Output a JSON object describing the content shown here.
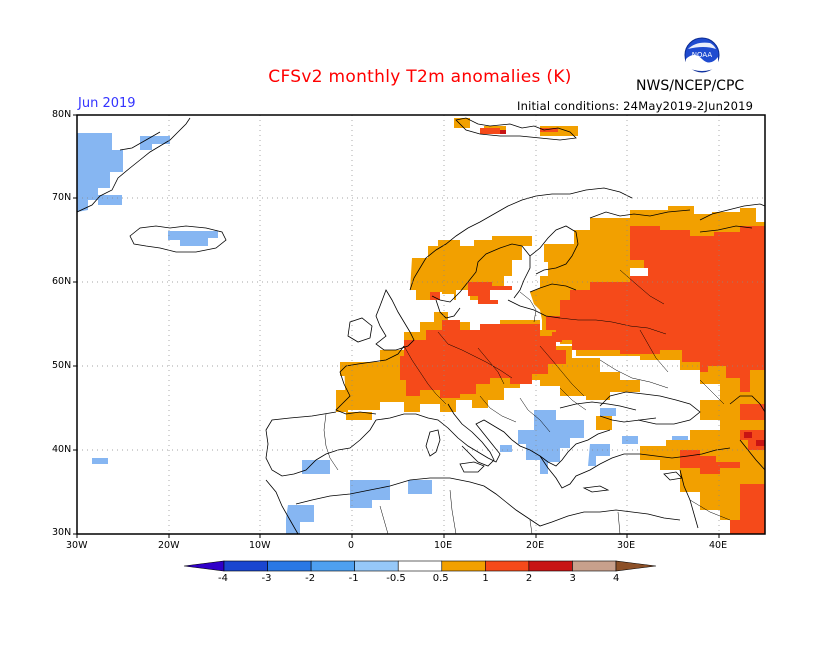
{
  "header": {
    "title": "CFSv2 monthly T2m anomalies (K)",
    "agency": "NWS/NCEP/CPC",
    "logo_text": "NOAA",
    "month": "Jun 2019",
    "initial_conditions": "Initial conditions: 24May2019-2Jun2019"
  },
  "axes": {
    "lat_labels": [
      "80N",
      "70N",
      "60N",
      "50N",
      "40N",
      "30N"
    ],
    "lon_labels": [
      "30W",
      "20W",
      "10W",
      "0",
      "10E",
      "20E",
      "30E",
      "40E"
    ]
  },
  "legend": {
    "labels": [
      "-4",
      "-3",
      "-2",
      "-1",
      "-0.5",
      "0.5",
      "1",
      "2",
      "3",
      "4"
    ],
    "colors": [
      "#3000c8",
      "#1a46d0",
      "#2a78e4",
      "#4ea0f0",
      "#96c8f8",
      "#ffffff",
      "#f2a000",
      "#f54a1a",
      "#c81414",
      "#c8a08c",
      "#8c5028"
    ]
  },
  "colors": {
    "cat_low_blue": "#86b6f2",
    "cat_orange": "#f2a000",
    "cat_red": "#f54a1a",
    "cat_darkred": "#c81414"
  }
}
